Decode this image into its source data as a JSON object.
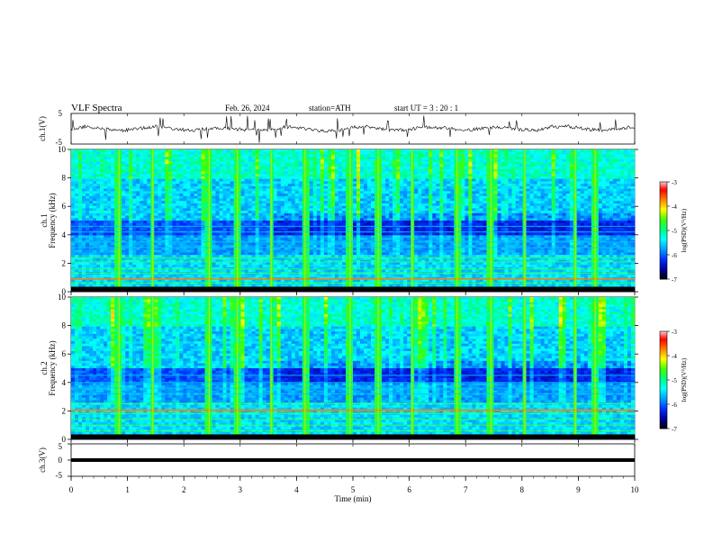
{
  "header": {
    "title": "VLF  Spectra",
    "date": "Feb. 26, 2024",
    "station": "station=ATH",
    "start_ut": "start  UT  =    3   : 20 : 1"
  },
  "chart_data": [
    {
      "id": "ch1-waveform",
      "type": "line",
      "ylabel": "ch.1(V)",
      "ylim": [
        -5,
        5
      ],
      "ytick_labels": [
        "5",
        "-5"
      ],
      "xlim": [
        0,
        10
      ],
      "note_visible": "noisy waveform near 0 V with spikes"
    },
    {
      "id": "ch1-spectrogram",
      "type": "heatmap",
      "ylabel": "ch.1\nFrequency  (kHz)",
      "ylabel_lines": [
        "ch.1",
        "Frequency  (kHz)"
      ],
      "ylim": [
        0,
        10
      ],
      "ytick_labels": [
        "0",
        "2",
        "4",
        "6",
        "8",
        "10"
      ],
      "xlim": [
        0,
        10
      ],
      "colorbar": {
        "label": "log(PSD)(V²/Hz)",
        "range": [
          -7,
          -3
        ],
        "tick_labels": [
          "-3",
          "-4",
          "-5",
          "-6",
          "-7"
        ]
      },
      "features": {
        "narrowband_khz": [
          0.3,
          0.6,
          0.9,
          1.3,
          1.6,
          2.1,
          2.4,
          3.1,
          3.5,
          4.2,
          4.6
        ],
        "impulsive_events_min": [
          0.85,
          1.45,
          2.45,
          2.95,
          3.55,
          4.15,
          4.95,
          5.45,
          6.05,
          6.85,
          7.45,
          8.05,
          8.95,
          9.3
        ]
      }
    },
    {
      "id": "ch2-spectrogram",
      "type": "heatmap",
      "ylabel": "ch.2\nFrequency  (kHz)",
      "ylabel_lines": [
        "ch.2",
        "Frequency  (kHz)"
      ],
      "ylim": [
        0,
        10
      ],
      "ytick_labels": [
        "0",
        "2",
        "4",
        "6",
        "8",
        "10"
      ],
      "xlim": [
        0,
        10
      ],
      "colorbar": {
        "label": "log(PSD)(V²/Hz)",
        "range": [
          -7,
          -3
        ],
        "tick_labels": [
          "-3",
          "-4",
          "-5",
          "-6",
          "-7"
        ]
      },
      "features": {
        "narrowband_khz": [
          0.3,
          0.6,
          1.0,
          1.4,
          1.8,
          2.05,
          2.5,
          3.2,
          3.6,
          4.0,
          4.5
        ],
        "impulsive_events_min": [
          0.85,
          1.45,
          2.45,
          2.95,
          3.55,
          4.15,
          4.95,
          5.45,
          6.05,
          6.85,
          7.45,
          8.05,
          8.95,
          9.3
        ]
      }
    },
    {
      "id": "ch3-waveform",
      "type": "line",
      "ylabel": "ch.3(V)",
      "ylim": [
        -5,
        5
      ],
      "ytick_labels": [
        "5",
        "0",
        "-5"
      ],
      "xlim": [
        0,
        10
      ],
      "constant_value": 0
    }
  ],
  "xaxis": {
    "label": "Time  (min)",
    "tick_labels": [
      "0",
      "1",
      "2",
      "3",
      "4",
      "5",
      "6",
      "7",
      "8",
      "9",
      "10"
    ]
  },
  "colors": {
    "scale": [
      "#000000",
      "#0000a0",
      "#0030ff",
      "#00a0ff",
      "#00ffff",
      "#00ff80",
      "#40ff00",
      "#ffff00",
      "#ff8000",
      "#ff0000",
      "#ffffff"
    ]
  }
}
